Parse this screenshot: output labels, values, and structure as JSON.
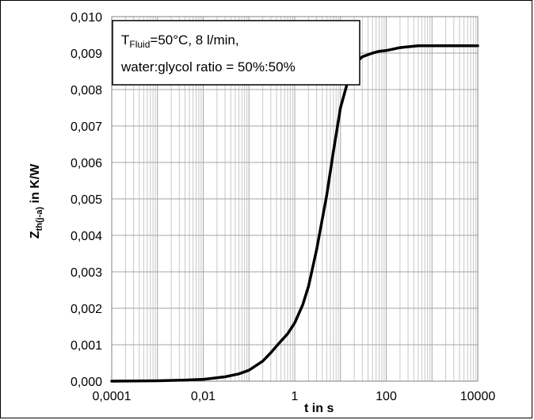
{
  "chart_data": {
    "type": "line",
    "x_scale": "log",
    "xlim": [
      0.0001,
      10000
    ],
    "ylim": [
      0,
      0.01
    ],
    "x_tick_labels": [
      "0,0001",
      "0,01",
      "1",
      "100",
      "10000"
    ],
    "y_tick_labels": [
      "0,000",
      "0,001",
      "0,002",
      "0,003",
      "0,004",
      "0,005",
      "0,006",
      "0,007",
      "0,008",
      "0,009",
      "0,010"
    ],
    "xlabel": "t in s",
    "ylabel": {
      "main": "Z",
      "sub": "th(j-a)",
      "rest": " in K/W"
    },
    "grid": true,
    "annotation": {
      "line1_prefix": "T",
      "line1_sub": "Fluid",
      "line1_rest": "=50°C, 8 l/min,",
      "line2": "water:glycol ratio = 50%:50%"
    },
    "series": [
      {
        "color": "#000000",
        "x": [
          0.0001,
          0.001,
          0.004,
          0.01,
          0.03,
          0.06,
          0.1,
          0.2,
          0.3,
          0.5,
          0.7,
          1,
          1.5,
          2,
          3,
          5,
          7,
          10,
          15,
          20,
          30,
          50,
          70,
          100,
          200,
          500,
          1000,
          10000
        ],
        "y": [
          0.0,
          1e-05,
          3e-05,
          5e-05,
          0.00012,
          0.0002,
          0.0003,
          0.00055,
          0.00078,
          0.0011,
          0.0013,
          0.0016,
          0.0021,
          0.0026,
          0.0036,
          0.0051,
          0.0063,
          0.0075,
          0.0083,
          0.0087,
          0.0089,
          0.009,
          0.00905,
          0.00907,
          0.00915,
          0.0092,
          0.0092,
          0.0092
        ]
      }
    ]
  }
}
